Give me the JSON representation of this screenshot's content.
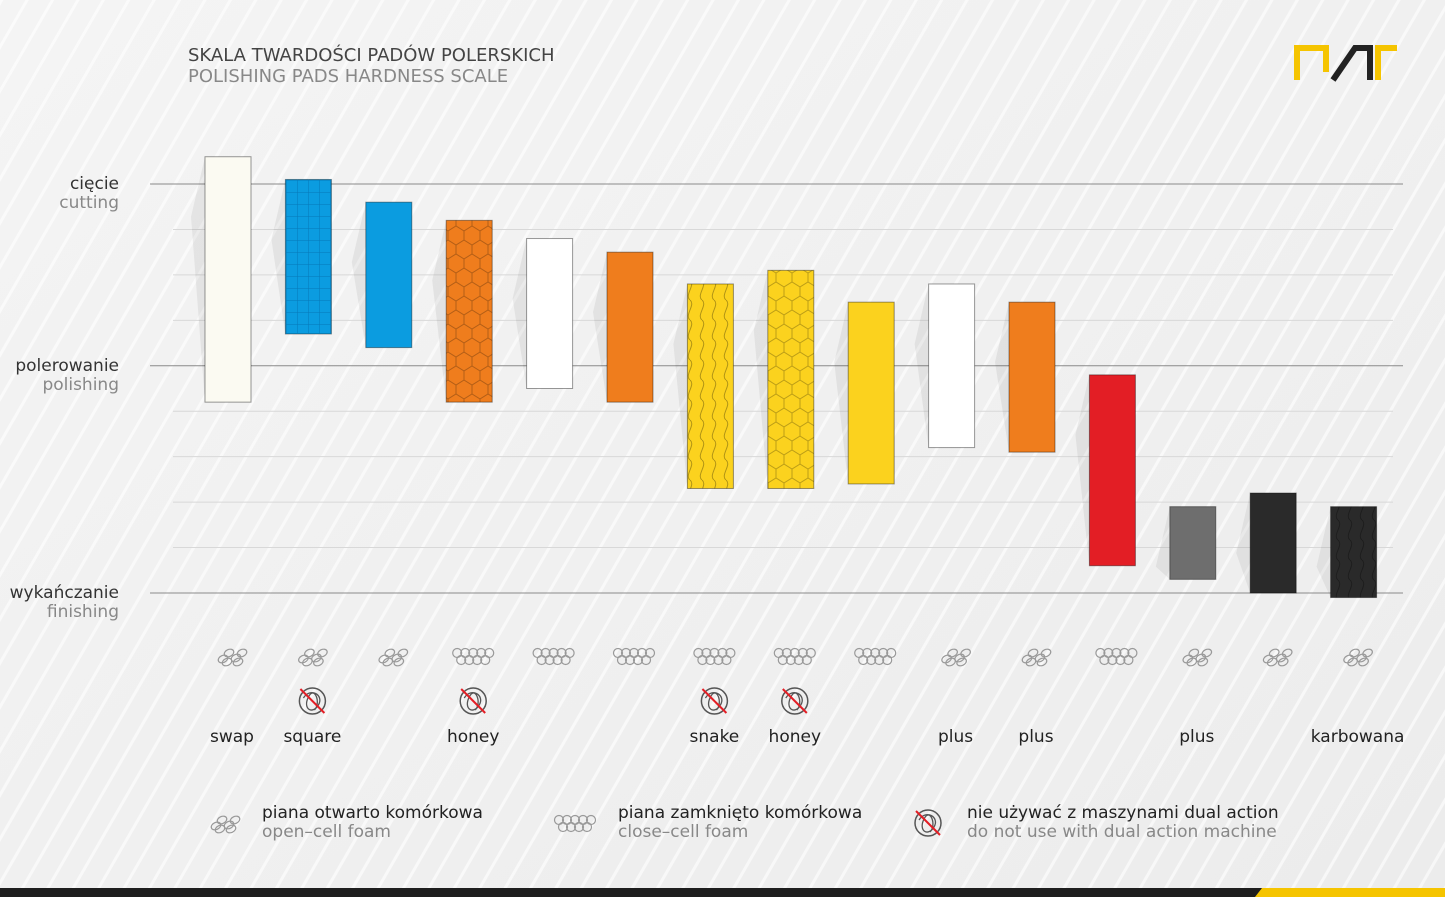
{
  "chart_data": {
    "type": "range_bar",
    "title": "SKALA TWARDOŚCI PADÓW  POLERSKICH",
    "subtitle": "POLISHING PADS HARDNESS SCALE",
    "ylim": [
      0,
      9
    ],
    "yticks": [
      {
        "value": 9,
        "label": "cięcie",
        "label_en": "cutting"
      },
      {
        "value": 5,
        "label": "polerowanie",
        "label_en": "polishing"
      },
      {
        "value": 0,
        "label": "wykańczanie",
        "label_en": "finishing"
      }
    ],
    "minor_ticks": [
      1,
      2,
      3,
      4,
      6,
      7,
      8
    ],
    "categories": [
      "swap",
      "square",
      null,
      "honey",
      null,
      null,
      "snake",
      "honey",
      null,
      "plus",
      "plus",
      null,
      "plus",
      null,
      "karbowana"
    ],
    "high": [
      9.6,
      9.1,
      8.6,
      8.2,
      7.8,
      7.5,
      6.8,
      7.1,
      6.4,
      6.8,
      6.4,
      4.8,
      1.9,
      2.2,
      1.9
    ],
    "low": [
      4.2,
      5.7,
      5.4,
      4.2,
      4.5,
      4.2,
      2.3,
      2.3,
      2.4,
      3.2,
      3.1,
      0.6,
      0.3,
      0.0,
      -0.1
    ],
    "colors": [
      "#fbfaf2",
      "#0b9ce0",
      "#0b9ce0",
      "#ef7d1d",
      "#ffffff",
      "#ef7d1d",
      "#fbd21e",
      "#fbd21e",
      "#fbd21e",
      "#ffffff",
      "#ef7d1d",
      "#e31e25",
      "#6e6e6e",
      "#2a2a2a",
      "#2a2a2a"
    ],
    "patterns": [
      null,
      "grid",
      null,
      "hex",
      null,
      null,
      "wave",
      "hex",
      null,
      null,
      null,
      null,
      null,
      null,
      "wave"
    ],
    "foam": [
      "open",
      "open",
      "open",
      "closed",
      "closed",
      "closed",
      "closed",
      "closed",
      "closed",
      "open",
      "open",
      "closed",
      "open",
      "open",
      "open"
    ],
    "no_dual_action": [
      false,
      true,
      false,
      true,
      false,
      false,
      true,
      true,
      false,
      false,
      false,
      false,
      false,
      false,
      false
    ],
    "legend": [
      {
        "label": "piana otwarto komórkowa",
        "label_en": "open–cell foam",
        "icon": "open"
      },
      {
        "label": "piana zamknięto komórkowa",
        "label_en": "close–cell foam",
        "icon": "closed"
      },
      {
        "label": "nie używać z maszynami dual action",
        "label_en": "do not use with dual action machine",
        "icon": "no_dual"
      }
    ]
  }
}
